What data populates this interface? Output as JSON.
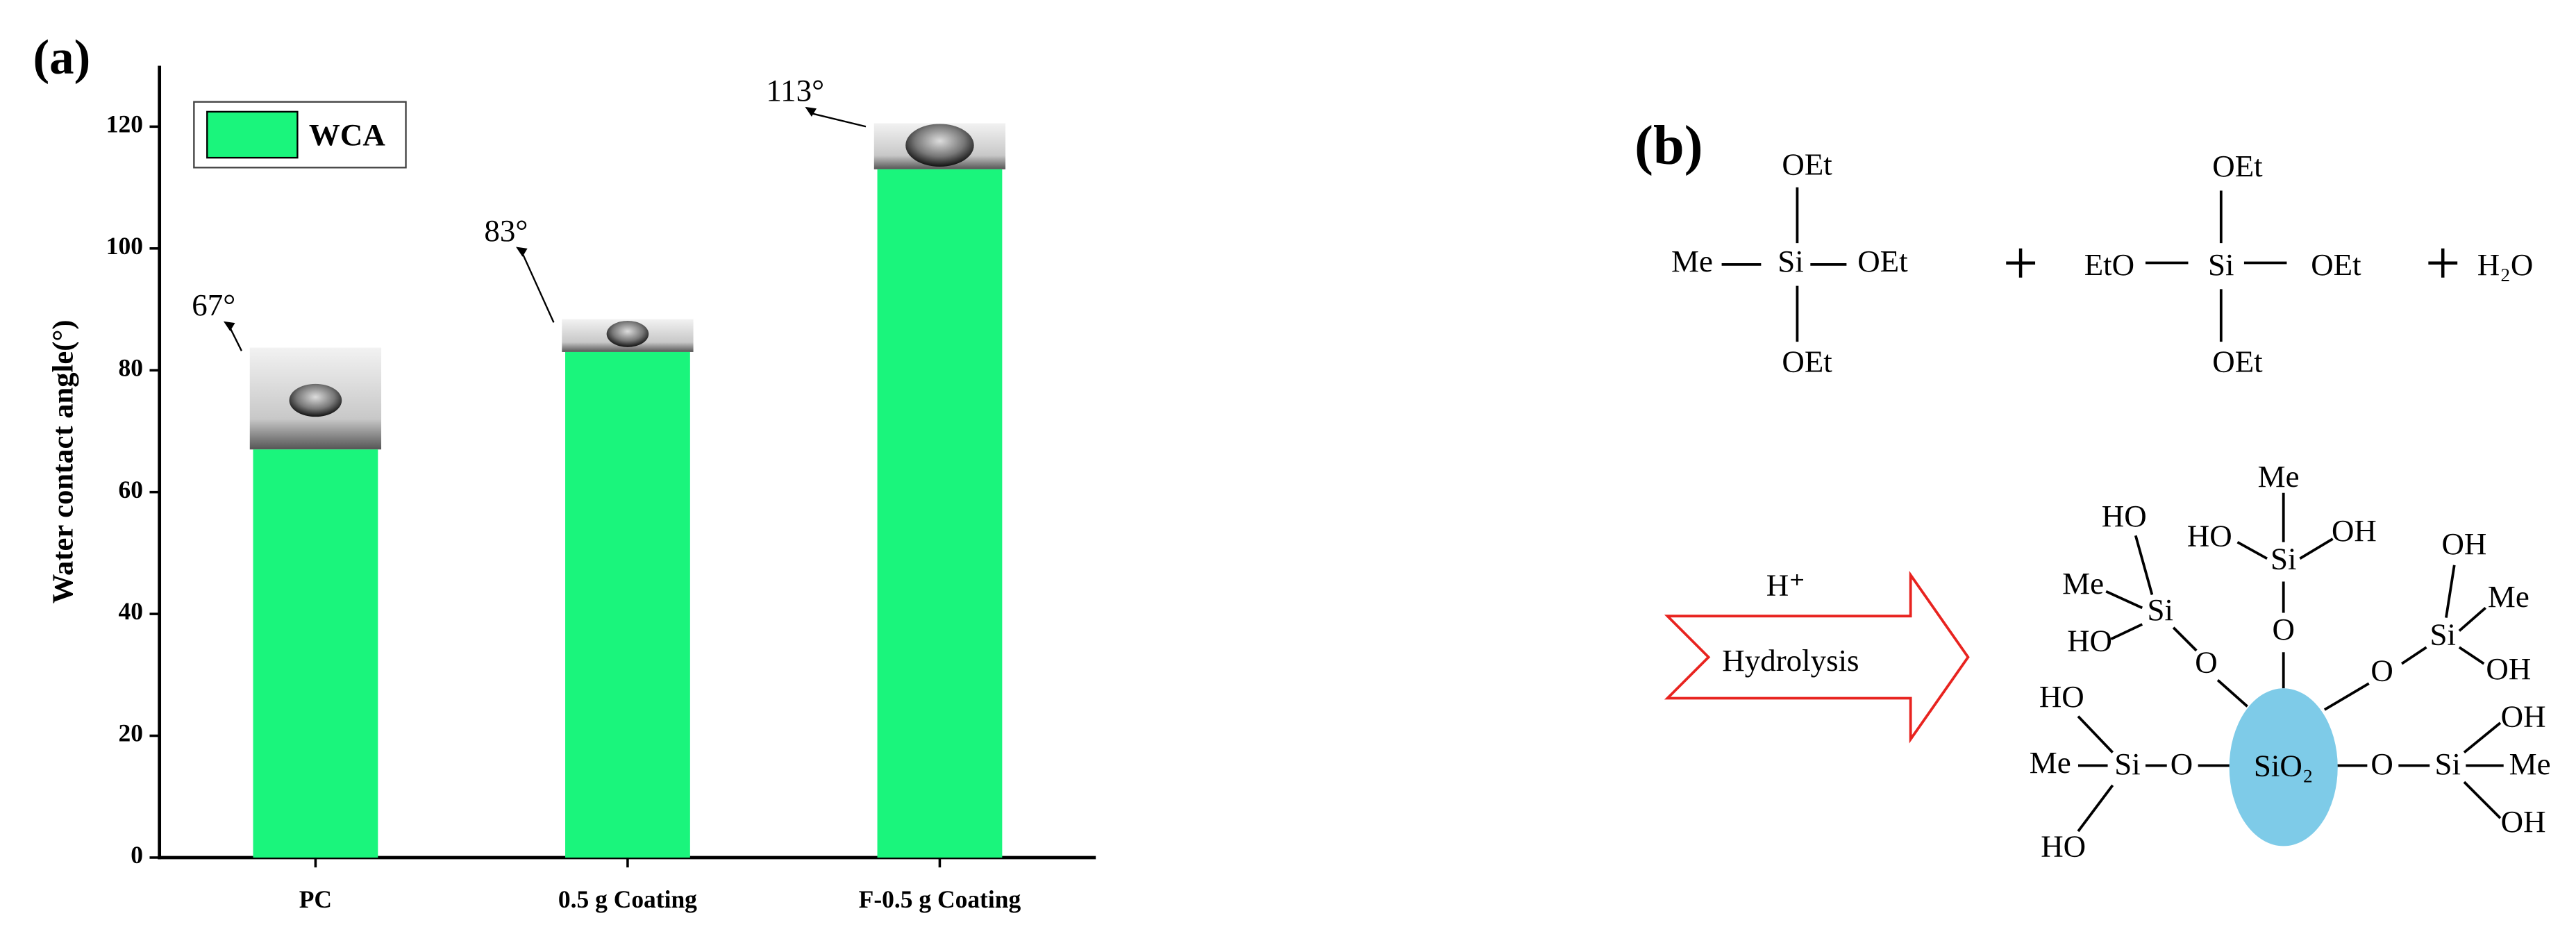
{
  "chart_data": {
    "type": "bar",
    "panel_label": "(a)",
    "y_label": "Water contact angle(°)",
    "categories": [
      "PC",
      "0.5 g Coating",
      "F-0.5 g Coating"
    ],
    "series": [
      {
        "name": "WCA",
        "color": "#1af57c",
        "values": [
          67,
          83,
          113
        ],
        "value_labels": [
          "67°",
          "83°",
          "113°"
        ]
      }
    ],
    "ylim": [
      0,
      130
    ],
    "yticks": [
      0,
      20,
      40,
      60,
      80,
      100,
      120
    ],
    "legend": "upper left"
  },
  "diagram": {
    "panel_label": "(b)",
    "reactant_1": {
      "top": "OEt",
      "left": "Me",
      "center": "Si",
      "right": "OEt",
      "bottom": "OEt"
    },
    "plus_1": "+",
    "reactant_2": {
      "top": "OEt",
      "left": "EtO",
      "center": "Si",
      "right": "OEt",
      "bottom": "OEt"
    },
    "plus_2": "+",
    "water": "H₂O",
    "arrow": {
      "catalyst": "H⁺",
      "label": "Hydrolysis"
    },
    "product": {
      "core": "SiO₂",
      "labels": [
        "Me",
        "HO",
        "Si",
        "OH",
        "O",
        "HO",
        "Me",
        "Si",
        "HO",
        "O",
        "OH",
        "Me",
        "Si",
        "OH",
        "O",
        "HO",
        "Me",
        "Si",
        "O",
        "HO",
        "OH",
        "O",
        "Si",
        "Me",
        "OH"
      ]
    }
  }
}
